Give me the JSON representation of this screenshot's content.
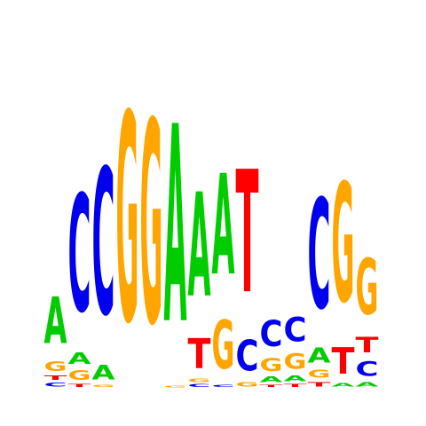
{
  "colors": {
    "A": "#00cc00",
    "C": "#0000ee",
    "G": "#ffa500",
    "T": "#ff0000",
    "background": "#ffffff"
  },
  "logo": {
    "alphabet": [
      "A",
      "C",
      "G",
      "T"
    ],
    "positions": [
      {
        "index": 1,
        "letters": [
          {
            "letter": "C",
            "height": 0.07
          },
          {
            "letter": "T",
            "height": 0.08
          },
          {
            "letter": "G",
            "height": 0.17
          },
          {
            "letter": "A",
            "height": 0.81
          }
        ]
      },
      {
        "index": 2,
        "letters": [
          {
            "letter": "T",
            "height": 0.05
          },
          {
            "letter": "G",
            "height": 0.17
          },
          {
            "letter": "A",
            "height": 0.2
          },
          {
            "letter": "C",
            "height": 2.04
          }
        ]
      },
      {
        "index": 3,
        "letters": [
          {
            "letter": "G",
            "height": 0.04
          },
          {
            "letter": "A",
            "height": 0.25
          },
          {
            "letter": "C",
            "height": 2.54
          }
        ]
      },
      {
        "index": 4,
        "letters": [
          {
            "letter": "G",
            "height": 3.62
          }
        ]
      },
      {
        "index": 5,
        "letters": [
          {
            "letter": "G",
            "height": 3.52
          }
        ]
      },
      {
        "index": 6,
        "letters": [
          {
            "letter": "G",
            "height": 0.03
          },
          {
            "letter": "A",
            "height": 3.43
          }
        ]
      },
      {
        "index": 7,
        "letters": [
          {
            "letter": "C",
            "height": 0.05
          },
          {
            "letter": "G",
            "height": 0.06
          },
          {
            "letter": "T",
            "height": 0.52
          },
          {
            "letter": "A",
            "height": 1.81
          }
        ]
      },
      {
        "index": 8,
        "letters": [
          {
            "letter": "C",
            "height": 0.04
          },
          {
            "letter": "G",
            "height": 0.84
          },
          {
            "letter": "A",
            "height": 1.75
          }
        ]
      },
      {
        "index": 9,
        "letters": [
          {
            "letter": "G",
            "height": 0.08
          },
          {
            "letter": "C",
            "height": 0.53
          },
          {
            "letter": "T",
            "height": 2.13
          }
        ]
      },
      {
        "index": 10,
        "letters": [
          {
            "letter": "T",
            "height": 0.04
          },
          {
            "letter": "A",
            "height": 0.1
          },
          {
            "letter": "G",
            "height": 0.22
          },
          {
            "letter": "C",
            "height": 0.45
          }
        ]
      },
      {
        "index": 11,
        "letters": [
          {
            "letter": "T",
            "height": 0.05
          },
          {
            "letter": "A",
            "height": 0.1
          },
          {
            "letter": "G",
            "height": 0.27
          },
          {
            "letter": "C",
            "height": 0.42
          }
        ]
      },
      {
        "index": 12,
        "letters": [
          {
            "letter": "T",
            "height": 0.08
          },
          {
            "letter": "G",
            "height": 0.14
          },
          {
            "letter": "A",
            "height": 0.26
          },
          {
            "letter": "C",
            "height": 1.91
          }
        ]
      },
      {
        "index": 13,
        "letters": [
          {
            "letter": "A",
            "height": 0.06
          },
          {
            "letter": "T",
            "height": 0.46
          },
          {
            "letter": "G",
            "height": 2.07
          }
        ]
      },
      {
        "index": 14,
        "letters": [
          {
            "letter": "A",
            "height": 0.08
          },
          {
            "letter": "C",
            "height": 0.25
          },
          {
            "letter": "T",
            "height": 0.27
          },
          {
            "letter": "G",
            "height": 0.97
          }
        ]
      }
    ]
  }
}
